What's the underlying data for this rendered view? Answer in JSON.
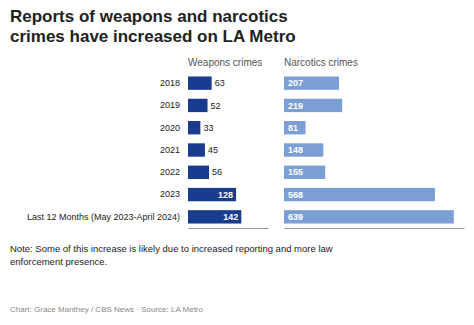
{
  "chart_data": [
    {
      "type": "bar",
      "orientation": "horizontal",
      "title": "Reports of weapons and narcotics\ncrimes have increased on LA Metro",
      "categories": [
        "2018",
        "2019",
        "2020",
        "2021",
        "2022",
        "2023",
        "Last 12 Months (May 2023-April 2024)"
      ],
      "series": [
        {
          "name": "Weapons crimes",
          "color": "#1a3c8f",
          "values": [
            63,
            52,
            33,
            45,
            56,
            128,
            142
          ]
        }
      ],
      "xlim": [
        0,
        213
      ],
      "data_labels": true,
      "tick_labels": "y",
      "grid": false,
      "annotations": [
        "Note: Some of this increase is likely due to increased reporting and more law\nenforcement presence.",
        "Chart: Grace Manthey / CBS News · Source: LA Metro"
      ]
    },
    {
      "type": "bar",
      "orientation": "horizontal",
      "categories": [
        "2018",
        "2019",
        "2020",
        "2021",
        "2022",
        "2023",
        "Last 12 Months (May 2023-April 2024)"
      ],
      "series": [
        {
          "name": "Narcotics crimes",
          "color": "#7b9fd4",
          "values": [
            207,
            219,
            81,
            148,
            155,
            568,
            639
          ]
        }
      ],
      "xlim": [
        0,
        677.34
      ],
      "data_labels": true,
      "tick_labels": false,
      "grid": false
    }
  ]
}
